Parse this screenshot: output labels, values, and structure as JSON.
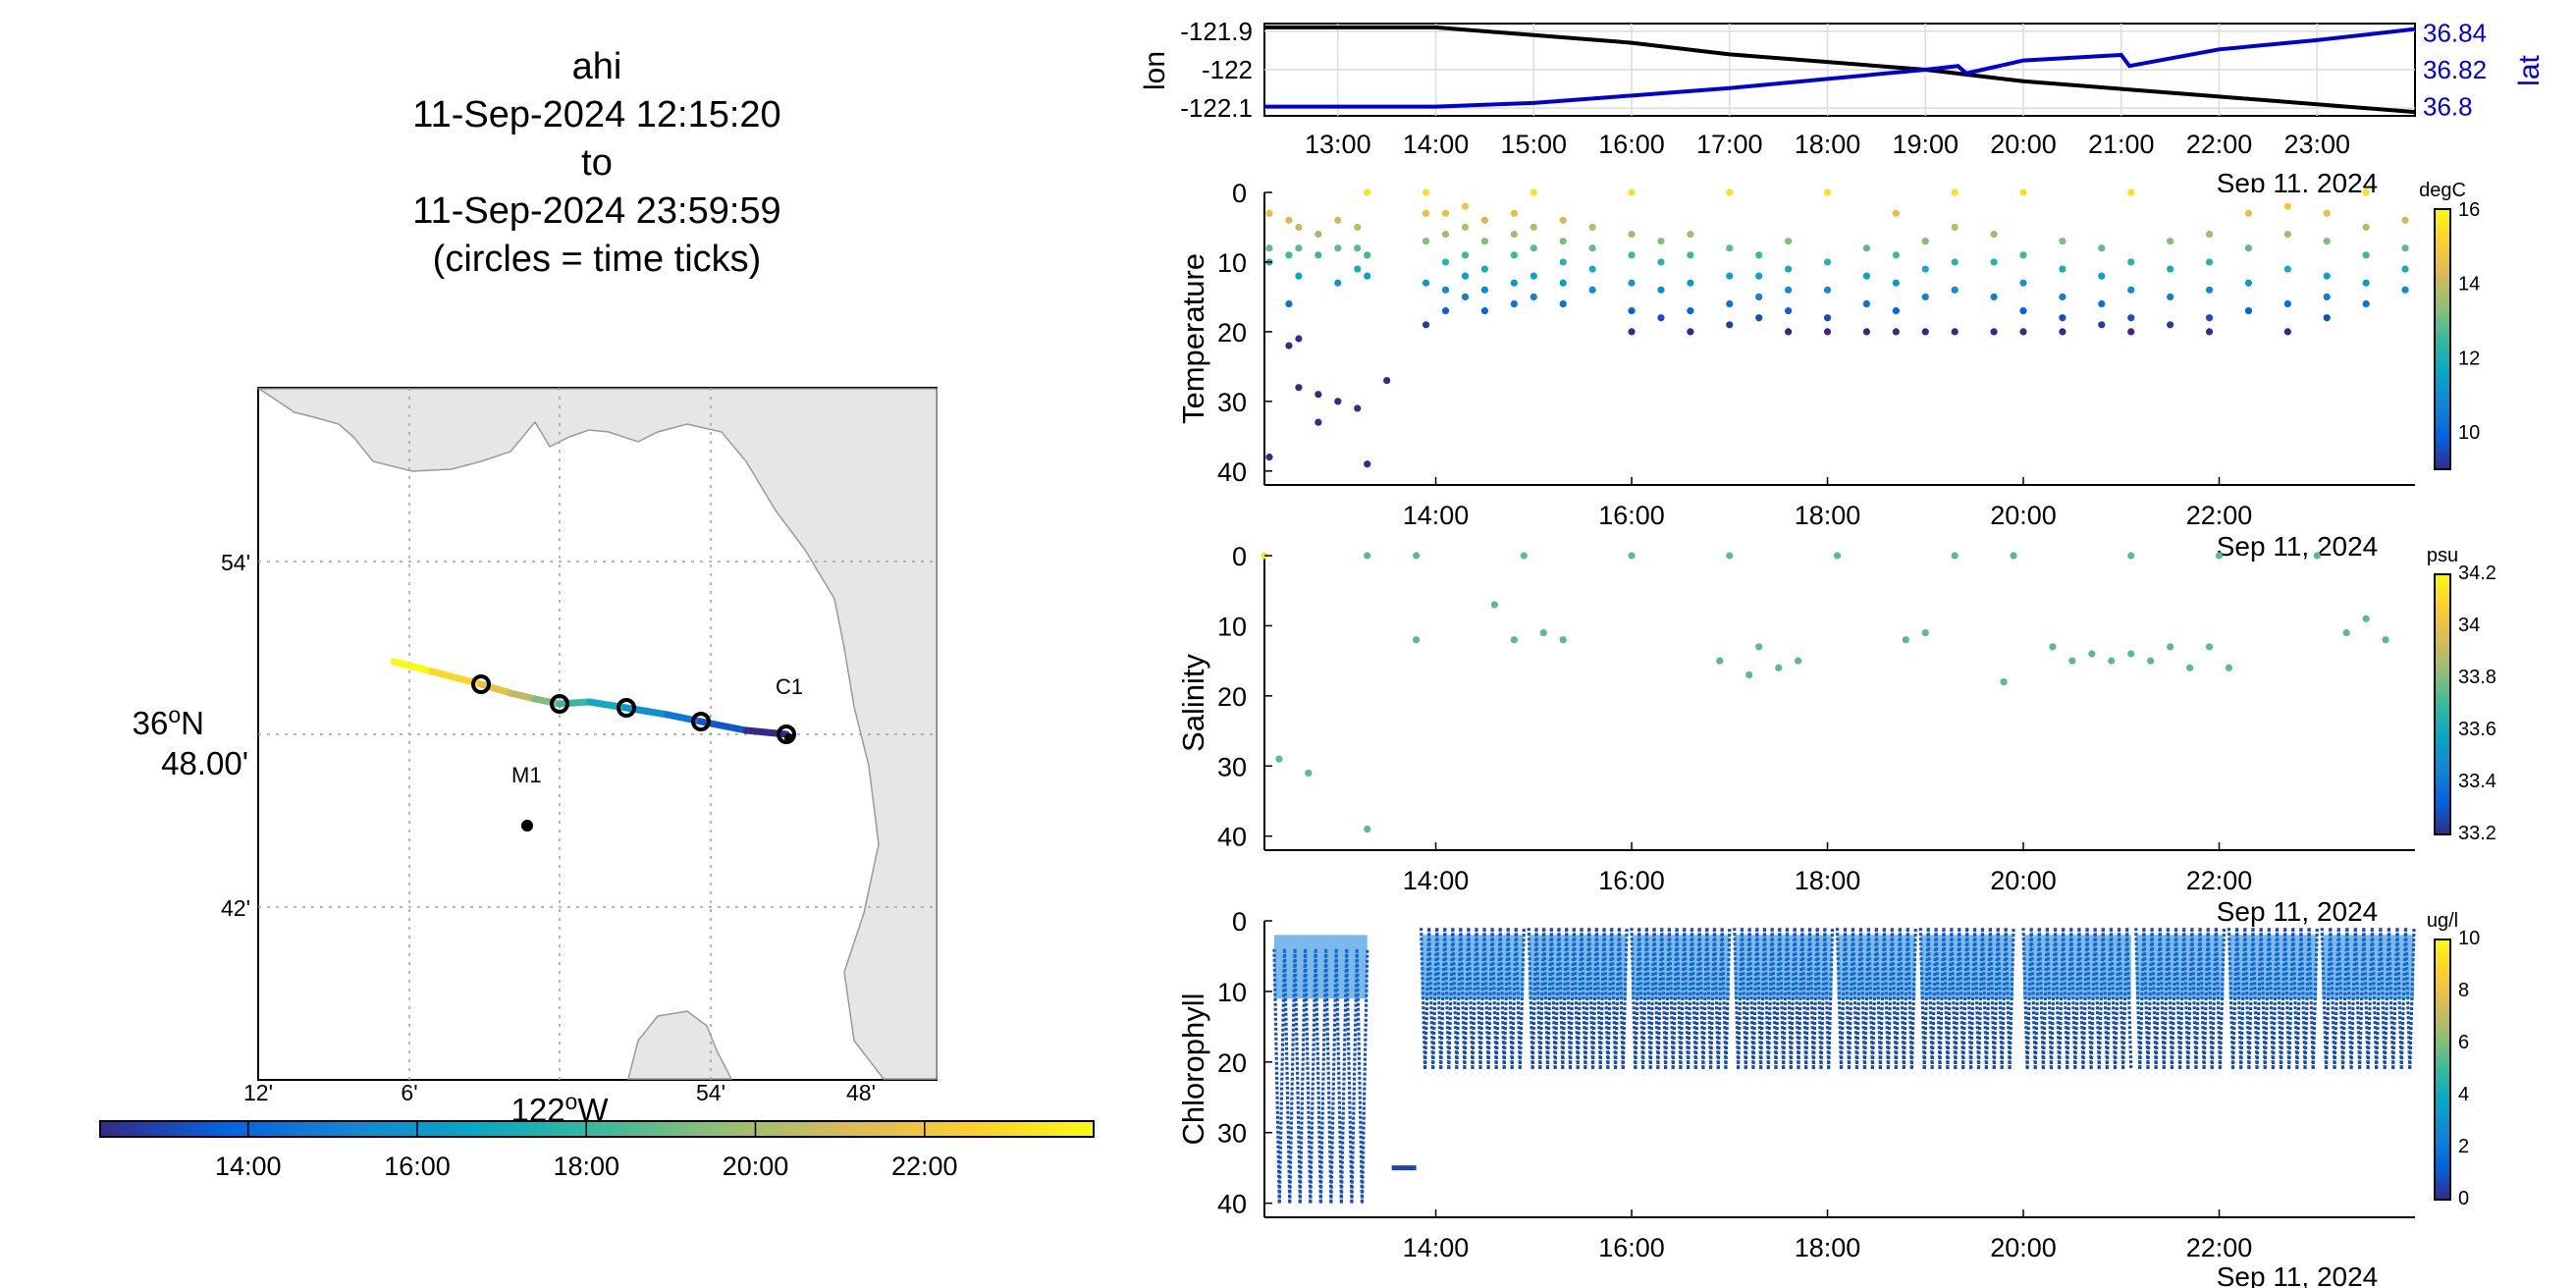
{
  "title": {
    "lines": [
      "ahi",
      "11-Sep-2024 12:15:20",
      "to",
      "11-Sep-2024 23:59:59",
      "(circles = time ticks)"
    ]
  },
  "colors": {
    "lon_line": "#000000",
    "lat_line": "#0000d6",
    "land": "#e6e6e6",
    "parula": [
      "#352a87",
      "#0363e1",
      "#1485d4",
      "#06a7c6",
      "#38b99e",
      "#92bf73",
      "#d9ba56",
      "#fcce2e",
      "#f9fb0e"
    ]
  },
  "map": {
    "lat_ticks": [
      {
        "v": 54,
        "label": "54'"
      },
      {
        "v": 48,
        "label": "36°N 48.00'"
      },
      {
        "v": 42,
        "label": "42'"
      }
    ],
    "lat_tick_main": "36",
    "lat_tick_deg": "o",
    "lat_tick_hemi": "N",
    "lat_tick_min": "48.00'",
    "lon_ticks": [
      "12'",
      "6'",
      "",
      "54'",
      "48'"
    ],
    "lon_label_main": "122",
    "lon_label_sup": "o",
    "lon_label_hemi": "W",
    "stations": [
      {
        "name": "C1"
      },
      {
        "name": "M1"
      }
    ],
    "colorbar_ticks": [
      "14:00",
      "16:00",
      "18:00",
      "20:00",
      "22:00"
    ]
  },
  "chart_data": [
    {
      "type": "line",
      "title": "",
      "ylabel": "lon",
      "y2label": "lat",
      "xlim": [
        "12:15",
        "24:00"
      ],
      "x_tick_labels": [
        "13:00",
        "14:00",
        "15:00",
        "16:00",
        "17:00",
        "18:00",
        "19:00",
        "20:00",
        "21:00",
        "22:00",
        "23:00"
      ],
      "date_label": "Sep 11, 2024",
      "ylim": [
        -122.12,
        -121.88
      ],
      "y_ticks": [
        -121.9,
        -122,
        -122.1
      ],
      "y_tick_labels": [
        "-121.9",
        "-122",
        "-122.1"
      ],
      "y2lim": [
        36.795,
        36.845
      ],
      "y2_ticks": [
        36.8,
        36.82,
        36.84
      ],
      "y2_tick_labels": [
        "36.8",
        "36.82",
        "36.84"
      ],
      "series": [
        {
          "name": "lon",
          "axis": "left",
          "x": [
            "12:15",
            "13:00",
            "14:00",
            "15:00",
            "16:00",
            "17:00",
            "18:00",
            "19:00",
            "20:00",
            "21:00",
            "22:00",
            "23:00",
            "24:00"
          ],
          "y": [
            -121.89,
            -121.89,
            -121.89,
            -121.91,
            -121.93,
            -121.96,
            -121.98,
            -122.0,
            -122.03,
            -122.05,
            -122.07,
            -122.09,
            -122.11
          ]
        },
        {
          "name": "lat",
          "axis": "right",
          "x": [
            "12:15",
            "13:00",
            "14:00",
            "15:00",
            "16:00",
            "17:00",
            "18:00",
            "19:00",
            "19:20",
            "19:25",
            "20:00",
            "21:00",
            "21:05",
            "22:00",
            "23:00",
            "24:00"
          ],
          "y": [
            36.8,
            36.8,
            36.8,
            36.802,
            36.806,
            36.81,
            36.815,
            36.82,
            36.822,
            36.818,
            36.825,
            36.828,
            36.822,
            36.831,
            36.836,
            36.842
          ]
        }
      ]
    },
    {
      "type": "scatter",
      "ylabel": "Temperature",
      "colorbar_label": "degC",
      "colorbar_range": [
        9,
        16
      ],
      "colorbar_ticks": [
        {
          "v": 16,
          "label": "16"
        },
        {
          "v": 14,
          "label": "14"
        },
        {
          "v": 12,
          "label": "12"
        },
        {
          "v": 10,
          "label": "10"
        }
      ],
      "ylim": [
        0,
        42
      ],
      "y_ticks": [
        0,
        10,
        20,
        30,
        40
      ],
      "x_tick_labels": [
        "14:00",
        "16:00",
        "18:00",
        "20:00",
        "22:00"
      ],
      "date_label": "Sep 11, 2024",
      "profiles": [
        {
          "t": 12.3,
          "d": [
            3,
            8,
            10,
            38
          ]
        },
        {
          "t": 12.5,
          "d": [
            4,
            9,
            16,
            22
          ]
        },
        {
          "t": 12.6,
          "d": [
            5,
            8,
            12,
            21,
            28
          ]
        },
        {
          "t": 12.8,
          "d": [
            6,
            9,
            29,
            33
          ]
        },
        {
          "t": 13.0,
          "d": [
            4,
            8,
            13,
            30
          ]
        },
        {
          "t": 13.2,
          "d": [
            5,
            8,
            11,
            31
          ]
        },
        {
          "t": 13.3,
          "d": [
            0,
            9,
            12,
            39
          ]
        },
        {
          "t": 13.5,
          "d": [
            27
          ]
        },
        {
          "t": 13.9,
          "d": [
            0,
            3,
            7,
            13,
            19
          ]
        },
        {
          "t": 14.1,
          "d": [
            3,
            6,
            10,
            14,
            17
          ]
        },
        {
          "t": 14.3,
          "d": [
            2,
            5,
            9,
            12,
            15
          ]
        },
        {
          "t": 14.5,
          "d": [
            4,
            7,
            11,
            14,
            17
          ]
        },
        {
          "t": 14.8,
          "d": [
            3,
            6,
            9,
            13,
            16
          ]
        },
        {
          "t": 15.0,
          "d": [
            0,
            5,
            8,
            12,
            15
          ]
        },
        {
          "t": 15.3,
          "d": [
            4,
            7,
            10,
            13,
            16
          ]
        },
        {
          "t": 15.6,
          "d": [
            5,
            8,
            11,
            14
          ]
        },
        {
          "t": 16.0,
          "d": [
            0,
            6,
            9,
            13,
            17,
            20
          ]
        },
        {
          "t": 16.3,
          "d": [
            7,
            10,
            14,
            18
          ]
        },
        {
          "t": 16.6,
          "d": [
            6,
            9,
            13,
            17,
            20
          ]
        },
        {
          "t": 17.0,
          "d": [
            0,
            8,
            12,
            16,
            19
          ]
        },
        {
          "t": 17.3,
          "d": [
            9,
            12,
            15,
            18
          ]
        },
        {
          "t": 17.6,
          "d": [
            7,
            11,
            14,
            17,
            20
          ]
        },
        {
          "t": 18.0,
          "d": [
            0,
            10,
            14,
            18,
            20
          ]
        },
        {
          "t": 18.4,
          "d": [
            8,
            12,
            16,
            20
          ]
        },
        {
          "t": 18.7,
          "d": [
            3,
            9,
            13,
            17,
            20
          ]
        },
        {
          "t": 19.0,
          "d": [
            7,
            11,
            15,
            20
          ]
        },
        {
          "t": 19.3,
          "d": [
            0,
            5,
            10,
            14,
            20
          ]
        },
        {
          "t": 19.7,
          "d": [
            6,
            10,
            15,
            20
          ]
        },
        {
          "t": 20.0,
          "d": [
            0,
            9,
            13,
            17,
            20
          ]
        },
        {
          "t": 20.4,
          "d": [
            7,
            11,
            15,
            18,
            20
          ]
        },
        {
          "t": 20.8,
          "d": [
            8,
            12,
            16,
            19
          ]
        },
        {
          "t": 21.1,
          "d": [
            0,
            10,
            14,
            18,
            20
          ]
        },
        {
          "t": 21.5,
          "d": [
            7,
            11,
            15,
            19
          ]
        },
        {
          "t": 21.9,
          "d": [
            6,
            10,
            14,
            18,
            20
          ]
        },
        {
          "t": 22.3,
          "d": [
            3,
            8,
            13,
            17
          ]
        },
        {
          "t": 22.7,
          "d": [
            2,
            6,
            11,
            16,
            20
          ]
        },
        {
          "t": 23.1,
          "d": [
            3,
            7,
            12,
            15,
            18
          ]
        },
        {
          "t": 23.5,
          "d": [
            0,
            5,
            9,
            13,
            16
          ]
        },
        {
          "t": 23.9,
          "d": [
            4,
            8,
            11,
            14
          ]
        }
      ]
    },
    {
      "type": "scatter",
      "ylabel": "Salinity",
      "colorbar_label": "psu",
      "colorbar_range": [
        33.2,
        34.2
      ],
      "colorbar_ticks": [
        {
          "v": 34.2,
          "label": "34.2"
        },
        {
          "v": 34,
          "label": "34"
        },
        {
          "v": 33.8,
          "label": "33.8"
        },
        {
          "v": 33.6,
          "label": "33.6"
        },
        {
          "v": 33.4,
          "label": "33.4"
        },
        {
          "v": 33.2,
          "label": "33.2"
        }
      ],
      "ylim": [
        0,
        42
      ],
      "y_ticks": [
        0,
        10,
        20,
        30,
        40
      ],
      "x_tick_labels": [
        "14:00",
        "16:00",
        "18:00",
        "20:00",
        "22:00"
      ],
      "date_label": "Sep 11, 2024",
      "points": [
        {
          "t": 12.25,
          "d": 0
        },
        {
          "t": 12.4,
          "d": 29
        },
        {
          "t": 12.7,
          "d": 31
        },
        {
          "t": 13.3,
          "d": 0
        },
        {
          "t": 13.3,
          "d": 39
        },
        {
          "t": 13.8,
          "d": 0
        },
        {
          "t": 13.8,
          "d": 12
        },
        {
          "t": 14.6,
          "d": 7
        },
        {
          "t": 14.8,
          "d": 12
        },
        {
          "t": 14.9,
          "d": 0
        },
        {
          "t": 15.1,
          "d": 11
        },
        {
          "t": 15.3,
          "d": 12
        },
        {
          "t": 16.0,
          "d": 0
        },
        {
          "t": 17.0,
          "d": 0
        },
        {
          "t": 16.9,
          "d": 15
        },
        {
          "t": 17.2,
          "d": 17
        },
        {
          "t": 17.3,
          "d": 13
        },
        {
          "t": 17.5,
          "d": 16
        },
        {
          "t": 17.7,
          "d": 15
        },
        {
          "t": 18.1,
          "d": 0
        },
        {
          "t": 18.8,
          "d": 12
        },
        {
          "t": 19.0,
          "d": 11
        },
        {
          "t": 19.3,
          "d": 0
        },
        {
          "t": 19.8,
          "d": 18
        },
        {
          "t": 19.9,
          "d": 0
        },
        {
          "t": 20.3,
          "d": 13
        },
        {
          "t": 20.5,
          "d": 15
        },
        {
          "t": 20.7,
          "d": 14
        },
        {
          "t": 20.9,
          "d": 15
        },
        {
          "t": 21.1,
          "d": 0
        },
        {
          "t": 21.1,
          "d": 14
        },
        {
          "t": 21.3,
          "d": 15
        },
        {
          "t": 21.5,
          "d": 13
        },
        {
          "t": 21.7,
          "d": 16
        },
        {
          "t": 21.9,
          "d": 13
        },
        {
          "t": 22.0,
          "d": 0
        },
        {
          "t": 22.1,
          "d": 16
        },
        {
          "t": 23.0,
          "d": 0
        },
        {
          "t": 23.3,
          "d": 11
        },
        {
          "t": 23.5,
          "d": 9
        },
        {
          "t": 23.7,
          "d": 12
        }
      ]
    },
    {
      "type": "scatter",
      "ylabel": "Chlorophyll",
      "colorbar_label": "ug/l",
      "colorbar_range": [
        0,
        10
      ],
      "colorbar_ticks": [
        {
          "v": 10,
          "label": "10"
        },
        {
          "v": 8,
          "label": "8"
        },
        {
          "v": 6,
          "label": "6"
        },
        {
          "v": 4,
          "label": "4"
        },
        {
          "v": 2,
          "label": "2"
        },
        {
          "v": 0,
          "label": "0"
        }
      ],
      "ylim": [
        0,
        42
      ],
      "y_ticks": [
        0,
        10,
        20,
        30,
        40
      ],
      "x_tick_labels": [
        "14:00",
        "16:00",
        "18:00",
        "20:00",
        "22:00"
      ],
      "date_label": "Sep 11, 2024",
      "segments": [
        {
          "t0": 12.35,
          "t1": 13.3,
          "top": 4,
          "bottom": 40,
          "n": 18
        },
        {
          "t0": 13.55,
          "t1": 13.8,
          "top": 35,
          "bottom": 35,
          "n": 1
        },
        {
          "t0": 13.85,
          "t1": 14.9,
          "top": 1,
          "bottom": 21,
          "n": 26
        },
        {
          "t0": 14.95,
          "t1": 15.95,
          "top": 1,
          "bottom": 21,
          "n": 26
        },
        {
          "t0": 16.0,
          "t1": 17.0,
          "top": 1,
          "bottom": 21,
          "n": 26
        },
        {
          "t0": 17.05,
          "t1": 18.05,
          "top": 1,
          "bottom": 21,
          "n": 26
        },
        {
          "t0": 18.1,
          "t1": 18.9,
          "top": 1,
          "bottom": 21,
          "n": 20
        },
        {
          "t0": 18.95,
          "t1": 19.9,
          "top": 1,
          "bottom": 21,
          "n": 24
        },
        {
          "t0": 20.0,
          "t1": 21.1,
          "top": 1,
          "bottom": 21,
          "n": 27
        },
        {
          "t0": 21.15,
          "t1": 22.05,
          "top": 1,
          "bottom": 21,
          "n": 22
        },
        {
          "t0": 22.1,
          "t1": 23.0,
          "top": 1,
          "bottom": 21,
          "n": 22
        },
        {
          "t0": 23.05,
          "t1": 23.99,
          "top": 1,
          "bottom": 21,
          "n": 22
        }
      ]
    }
  ]
}
